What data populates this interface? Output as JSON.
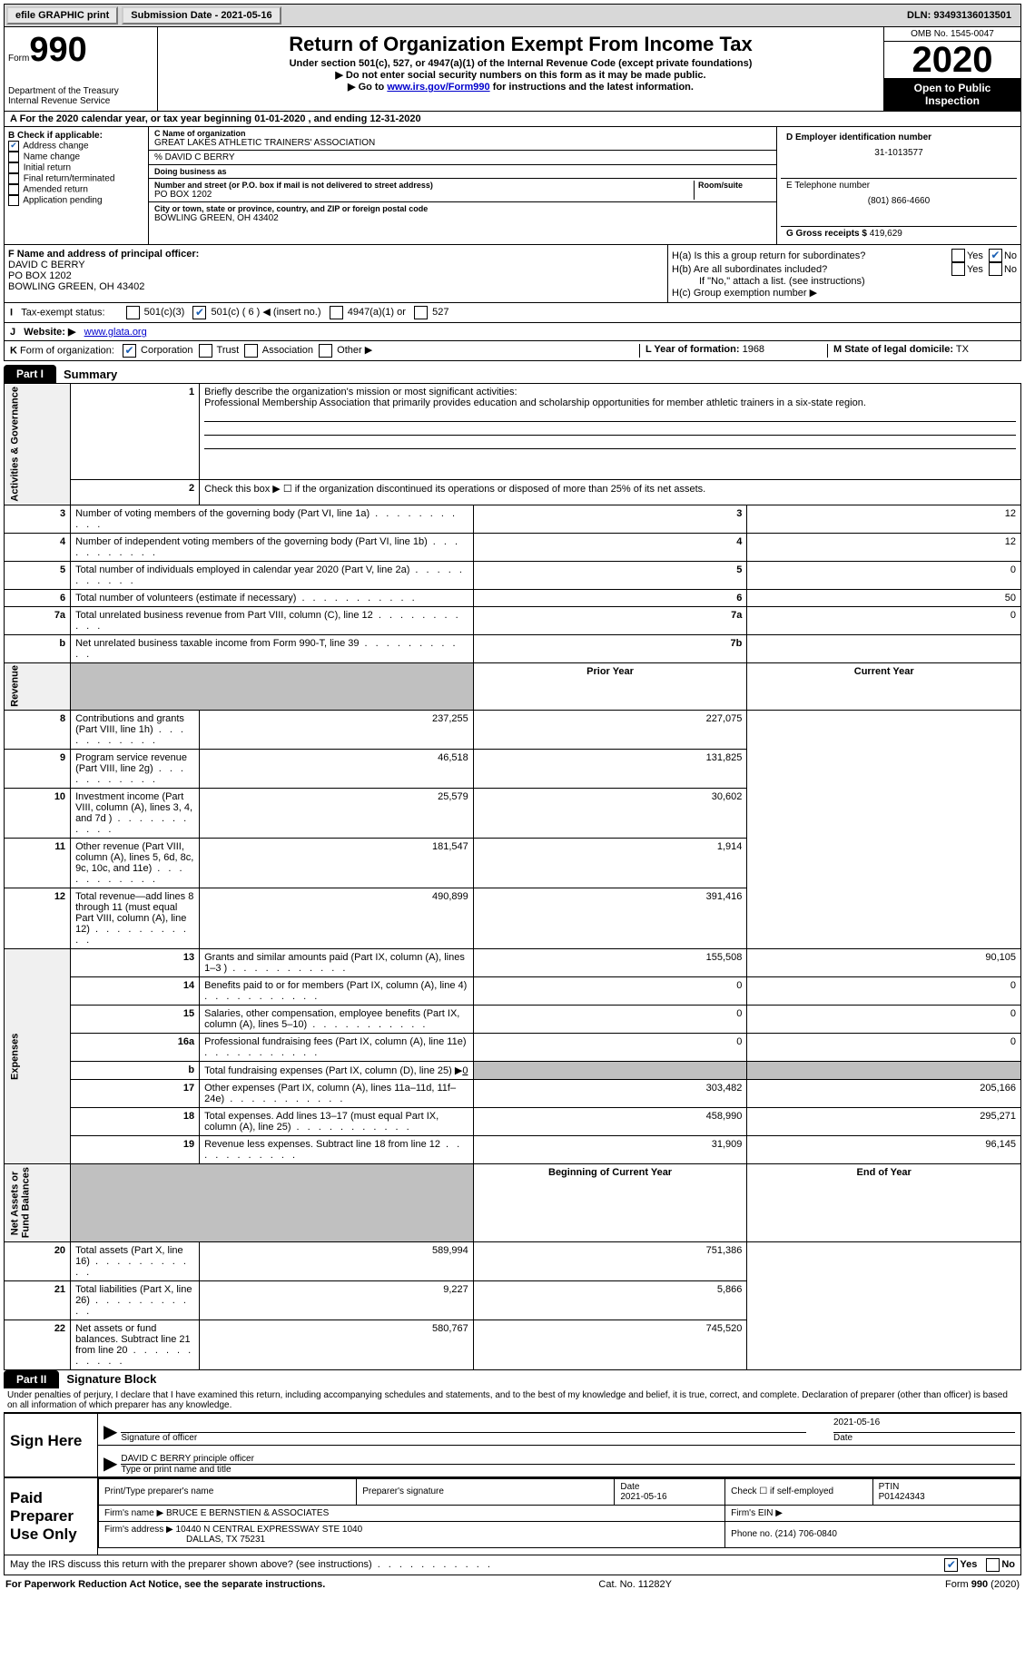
{
  "topbar": {
    "efile": "efile GRAPHIC print",
    "submission": "Submission Date - 2021-05-16",
    "dln": "DLN: 93493136013501"
  },
  "header": {
    "form_word": "Form",
    "form_num": "990",
    "title": "Return of Organization Exempt From Income Tax",
    "subtitle": "Under section 501(c), 527, or 4947(a)(1) of the Internal Revenue Code (except private foundations)",
    "note1": "▶ Do not enter social security numbers on this form as it may be made public.",
    "note2_pre": "▶ Go to ",
    "note2_link": "www.irs.gov/Form990",
    "note2_post": " for instructions and the latest information.",
    "dept": "Department of the Treasury\nInternal Revenue Service",
    "omb": "OMB No. 1545-0047",
    "year": "2020",
    "inspect": "Open to Public Inspection"
  },
  "lineA": "For the 2020 calendar year, or tax year beginning 01-01-2020    , and ending 12-31-2020",
  "boxB": {
    "title": "B Check if applicable:",
    "items": [
      "Address change",
      "Name change",
      "Initial return",
      "Final return/terminated",
      "Amended return",
      "Application pending"
    ],
    "checked_idx": 0
  },
  "boxC": {
    "name_lbl": "C Name of organization",
    "name": "GREAT LAKES ATHLETIC TRAINERS' ASSOCIATION",
    "care_of": "% DAVID C BERRY",
    "dba_lbl": "Doing business as",
    "dba": "",
    "street_lbl": "Number and street (or P.O. box if mail is not delivered to street address)",
    "room_lbl": "Room/suite",
    "street": "PO BOX 1202",
    "city_lbl": "City or town, state or province, country, and ZIP or foreign postal code",
    "city": "BOWLING GREEN, OH  43402"
  },
  "boxD": {
    "lbl": "D Employer identification number",
    "val": "31-1013577"
  },
  "boxE": {
    "lbl": "E Telephone number",
    "val": "(801) 866-4660"
  },
  "boxG": {
    "lbl": "G Gross receipts $",
    "val": "419,629"
  },
  "boxF": {
    "lbl": "F  Name and address of principal officer:",
    "line1": "DAVID C BERRY",
    "line2": "PO BOX 1202",
    "line3": "BOWLING GREEN, OH  43402"
  },
  "boxH": {
    "a": "H(a)  Is this a group return for subordinates?",
    "b": "H(b)  Are all subordinates included?",
    "b_note": "If \"No,\" attach a list. (see instructions)",
    "c": "H(c)  Group exemption number ▶",
    "yes": "Yes",
    "no": "No"
  },
  "lineI": {
    "lbl": "Tax-exempt status:",
    "opts": [
      "501(c)(3)",
      "501(c) ( 6 ) ◀ (insert no.)",
      "4947(a)(1) or",
      "527"
    ],
    "checked_idx": 1
  },
  "lineJ": {
    "lbl": "Website: ▶",
    "val": "www.glata.org"
  },
  "lineK": {
    "lbl": "Form of organization:",
    "opts": [
      "Corporation",
      "Trust",
      "Association",
      "Other ▶"
    ],
    "checked_idx": 0
  },
  "lineL": {
    "lbl": "L Year of formation:",
    "val": "1968"
  },
  "lineM": {
    "lbl": "M State of legal domicile:",
    "val": "TX"
  },
  "part1": {
    "tab": "Part I",
    "title": "Summary"
  },
  "mission": {
    "q": "Briefly describe the organization's mission or most significant activities:",
    "a": "Professional Membership Association that primarily provides education and scholarship opportunities for member athletic trainers in a six-state region."
  },
  "line2": "Check this box ▶ ☐  if the organization discontinued its operations or disposed of more than 25% of its net assets.",
  "gov_rows": [
    {
      "n": "3",
      "t": "Number of voting members of the governing body (Part VI, line 1a)",
      "box": "3",
      "v": "12"
    },
    {
      "n": "4",
      "t": "Number of independent voting members of the governing body (Part VI, line 1b)",
      "box": "4",
      "v": "12"
    },
    {
      "n": "5",
      "t": "Total number of individuals employed in calendar year 2020 (Part V, line 2a)",
      "box": "5",
      "v": "0"
    },
    {
      "n": "6",
      "t": "Total number of volunteers (estimate if necessary)",
      "box": "6",
      "v": "50"
    },
    {
      "n": "7a",
      "t": "Total unrelated business revenue from Part VIII, column (C), line 12",
      "box": "7a",
      "v": "0"
    },
    {
      "n": "b",
      "t": "Net unrelated business taxable income from Form 990-T, line 39",
      "box": "7b",
      "v": ""
    }
  ],
  "col_hdrs": {
    "prior": "Prior Year",
    "curr": "Current Year",
    "beg": "Beginning of Current Year",
    "end": "End of Year"
  },
  "rev_rows": [
    {
      "n": "8",
      "t": "Contributions and grants (Part VIII, line 1h)",
      "p": "237,255",
      "c": "227,075"
    },
    {
      "n": "9",
      "t": "Program service revenue (Part VIII, line 2g)",
      "p": "46,518",
      "c": "131,825"
    },
    {
      "n": "10",
      "t": "Investment income (Part VIII, column (A), lines 3, 4, and 7d )",
      "p": "25,579",
      "c": "30,602"
    },
    {
      "n": "11",
      "t": "Other revenue (Part VIII, column (A), lines 5, 6d, 8c, 9c, 10c, and 11e)",
      "p": "181,547",
      "c": "1,914"
    },
    {
      "n": "12",
      "t": "Total revenue—add lines 8 through 11 (must equal Part VIII, column (A), line 12)",
      "p": "490,899",
      "c": "391,416"
    }
  ],
  "exp_rows": [
    {
      "n": "13",
      "t": "Grants and similar amounts paid (Part IX, column (A), lines 1–3 )",
      "p": "155,508",
      "c": "90,105"
    },
    {
      "n": "14",
      "t": "Benefits paid to or for members (Part IX, column (A), line 4)",
      "p": "0",
      "c": "0"
    },
    {
      "n": "15",
      "t": "Salaries, other compensation, employee benefits (Part IX, column (A), lines 5–10)",
      "p": "0",
      "c": "0"
    },
    {
      "n": "16a",
      "t": "Professional fundraising fees (Part IX, column (A), line 11e)",
      "p": "0",
      "c": "0"
    }
  ],
  "exp_16b": {
    "n": "b",
    "t": "Total fundraising expenses (Part IX, column (D), line 25) ▶",
    "v": "0"
  },
  "exp_rows2": [
    {
      "n": "17",
      "t": "Other expenses (Part IX, column (A), lines 11a–11d, 11f–24e)",
      "p": "303,482",
      "c": "205,166"
    },
    {
      "n": "18",
      "t": "Total expenses. Add lines 13–17 (must equal Part IX, column (A), line 25)",
      "p": "458,990",
      "c": "295,271"
    },
    {
      "n": "19",
      "t": "Revenue less expenses. Subtract line 18 from line 12",
      "p": "31,909",
      "c": "96,145"
    }
  ],
  "na_rows": [
    {
      "n": "20",
      "t": "Total assets (Part X, line 16)",
      "p": "589,994",
      "c": "751,386"
    },
    {
      "n": "21",
      "t": "Total liabilities (Part X, line 26)",
      "p": "9,227",
      "c": "5,866"
    },
    {
      "n": "22",
      "t": "Net assets or fund balances. Subtract line 21 from line 20",
      "p": "580,767",
      "c": "745,520"
    }
  ],
  "side_labels": {
    "gov": "Activities & Governance",
    "rev": "Revenue",
    "exp": "Expenses",
    "na": "Net Assets or\nFund Balances"
  },
  "part2": {
    "tab": "Part II",
    "title": "Signature Block"
  },
  "perjury": "Under penalties of perjury, I declare that I have examined this return, including accompanying schedules and statements, and to the best of my knowledge and belief, it is true, correct, and complete. Declaration of preparer (other than officer) is based on all information of which preparer has any knowledge.",
  "sign": {
    "here": "Sign Here",
    "sig_lbl": "Signature of officer",
    "date_lbl": "Date",
    "date_val": "2021-05-16",
    "name": "DAVID C BERRY  principle officer",
    "name_lbl": "Type or print name and title"
  },
  "prep": {
    "title": "Paid Preparer Use Only",
    "h1": "Print/Type preparer's name",
    "h2": "Preparer's signature",
    "h3": "Date",
    "h4": "Check ☐ if self-employed",
    "h5": "PTIN",
    "date": "2021-05-16",
    "ptin": "P01424343",
    "firm_lbl": "Firm's name   ▶",
    "firm": "BRUCE E BERNSTIEN & ASSOCIATES",
    "ein_lbl": "Firm's EIN ▶",
    "addr_lbl": "Firm's address ▶",
    "addr1": "10440 N CENTRAL EXPRESSWAY STE 1040",
    "addr2": "DALLAS, TX  75231",
    "phone_lbl": "Phone no.",
    "phone": "(214) 706-0840"
  },
  "discuss": {
    "q": "May the IRS discuss this return with the preparer shown above? (see instructions)",
    "yes": "Yes",
    "no": "No"
  },
  "footer": {
    "l": "For Paperwork Reduction Act Notice, see the separate instructions.",
    "c": "Cat. No. 11282Y",
    "r": "Form 990 (2020)"
  }
}
